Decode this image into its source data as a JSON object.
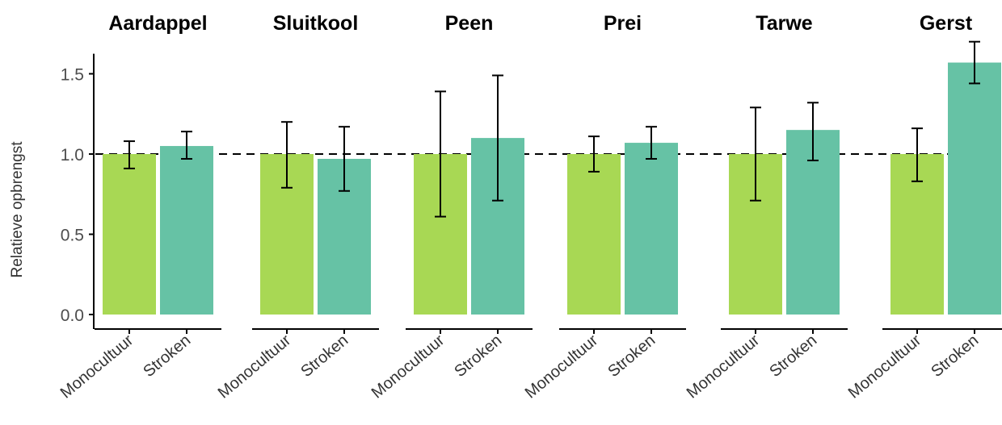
{
  "chart_data": {
    "type": "bar",
    "ylabel": "Relatieve opbrengst",
    "ylim": [
      0,
      1.6
    ],
    "yticks": [
      "0.0",
      "0.5",
      "1.0",
      "1.5"
    ],
    "reference_line": 1.0,
    "categories": [
      "Monocultuur",
      "Stroken"
    ],
    "colors": {
      "Monocultuur": "#a8d854",
      "Stroken": "#66c2a5"
    },
    "grid": false,
    "legend": "none",
    "panels": [
      {
        "title": "Aardappel",
        "values": [
          1.0,
          1.05
        ],
        "err_low": [
          0.91,
          0.97
        ],
        "err_high": [
          1.08,
          1.14
        ]
      },
      {
        "title": "Sluitkool",
        "values": [
          1.0,
          0.97
        ],
        "err_low": [
          0.79,
          0.77
        ],
        "err_high": [
          1.2,
          1.17
        ]
      },
      {
        "title": "Peen",
        "values": [
          1.0,
          1.1
        ],
        "err_low": [
          0.61,
          0.71
        ],
        "err_high": [
          1.39,
          1.49
        ]
      },
      {
        "title": "Prei",
        "values": [
          1.0,
          1.07
        ],
        "err_low": [
          0.89,
          0.97
        ],
        "err_high": [
          1.11,
          1.17
        ]
      },
      {
        "title": "Tarwe",
        "values": [
          1.0,
          1.15
        ],
        "err_low": [
          0.71,
          0.96
        ],
        "err_high": [
          1.29,
          1.32
        ]
      },
      {
        "title": "Gerst",
        "values": [
          1.0,
          1.57
        ],
        "err_low": [
          0.83,
          1.44
        ],
        "err_high": [
          1.16,
          1.7
        ]
      }
    ]
  }
}
